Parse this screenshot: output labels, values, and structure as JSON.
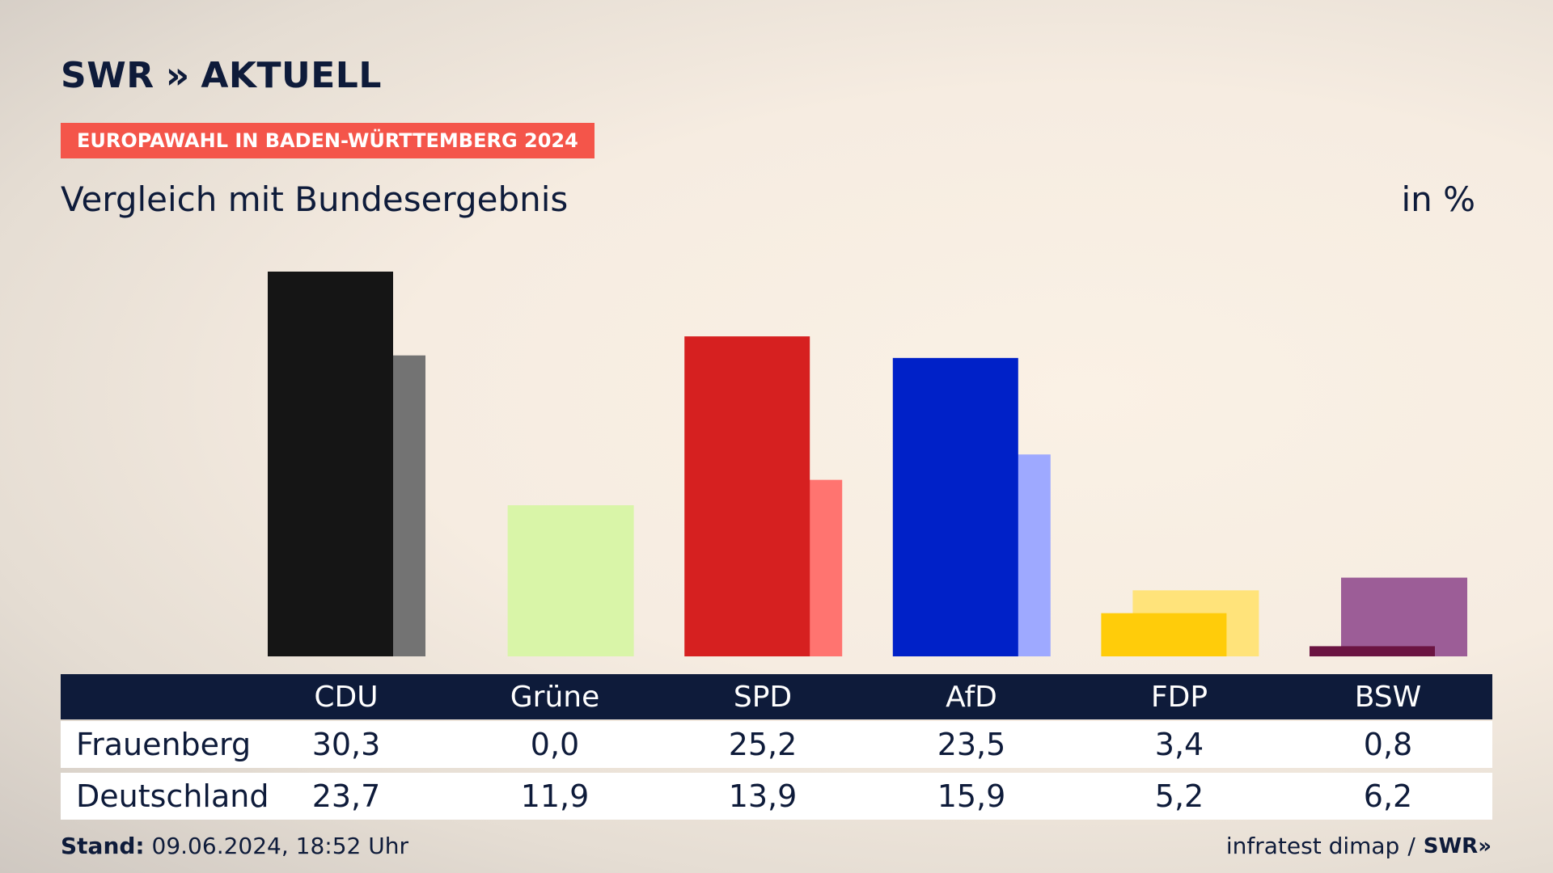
{
  "brand": {
    "logo_text": "SWR",
    "logo_chevrons": "»",
    "logo_suffix": "AKTUELL"
  },
  "badge": "EUROPAWAHL IN BADEN-WÜRTTEMBERG 2024",
  "subtitle": "Vergleich mit Bundesergebnis",
  "unit": "in %",
  "chart_data": {
    "type": "bar",
    "title": "Vergleich mit Bundesergebnis",
    "categories": [
      "CDU",
      "Grüne",
      "SPD",
      "AfD",
      "FDP",
      "BSW"
    ],
    "series": [
      {
        "name": "Frauenberg",
        "values": [
          30.3,
          0.0,
          25.2,
          23.5,
          3.4,
          0.8
        ]
      },
      {
        "name": "Deutschland",
        "values": [
          23.7,
          11.9,
          13.9,
          15.9,
          5.2,
          6.2
        ]
      }
    ],
    "colors": {
      "CDU": [
        "#151515",
        "#737373"
      ],
      "Grüne": [
        "#8fc93a",
        "#d9f5a8"
      ],
      "SPD": [
        "#d62020",
        "#ff7470"
      ],
      "AfD": [
        "#0021c8",
        "#9ea9ff"
      ],
      "FDP": [
        "#ffcc0a",
        "#ffe37a"
      ],
      "BSW": [
        "#6b1442",
        "#9c5d97"
      ]
    },
    "ylim": [
      0,
      30.3
    ],
    "xlabel": "",
    "ylabel": "",
    "grid": false
  },
  "table": {
    "rows": [
      {
        "label": "Frauenberg",
        "values": [
          "30,3",
          "0,0",
          "25,2",
          "23,5",
          "3,4",
          "0,8"
        ]
      },
      {
        "label": "Deutschland",
        "values": [
          "23,7",
          "11,9",
          "13,9",
          "15,9",
          "5,2",
          "6,2"
        ]
      }
    ]
  },
  "footer": {
    "stand_label": "Stand:",
    "stand_value": "09.06.2024, 18:52 Uhr",
    "source": "infratest dimap",
    "separator": "/",
    "source_logo": "SWR»"
  }
}
